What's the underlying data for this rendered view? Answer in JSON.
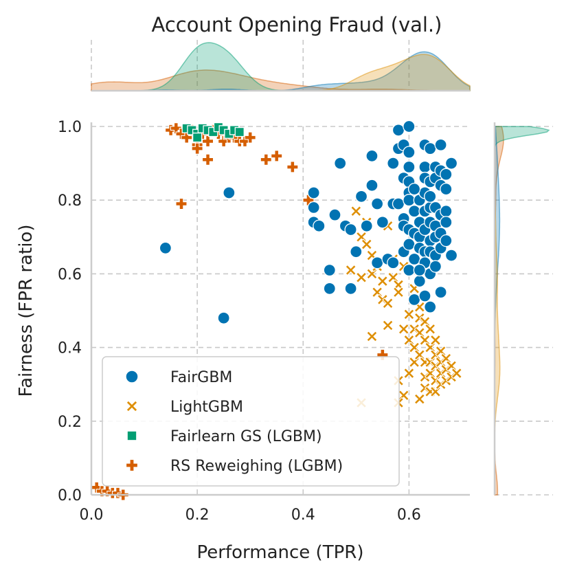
{
  "chart_data": {
    "type": "scatter",
    "title": "Account Opening Fraud (val.)",
    "xlabel": "Performance (TPR)",
    "ylabel": "Fairness (FPR ratio)",
    "xlim": [
      0.0,
      0.715
    ],
    "ylim": [
      0.0,
      1.0
    ],
    "xticks": [
      "0.0",
      "0.2",
      "0.4",
      "0.6"
    ],
    "yticks": [
      "0.0",
      "0.2",
      "0.4",
      "0.6",
      "0.8",
      "1.0"
    ],
    "grid": true,
    "legend_position": "lower-left",
    "marginal_distributions": true,
    "series": [
      {
        "name": "FairGBM",
        "marker": "circle",
        "color": "#0173b2",
        "points": [
          [
            0.14,
            0.67
          ],
          [
            0.25,
            0.48
          ],
          [
            0.26,
            0.82
          ],
          [
            0.42,
            0.82
          ],
          [
            0.42,
            0.78
          ],
          [
            0.42,
            0.74
          ],
          [
            0.43,
            0.73
          ],
          [
            0.46,
            0.76
          ],
          [
            0.45,
            0.61
          ],
          [
            0.45,
            0.56
          ],
          [
            0.47,
            0.9
          ],
          [
            0.48,
            0.73
          ],
          [
            0.49,
            0.72
          ],
          [
            0.49,
            0.56
          ],
          [
            0.5,
            0.66
          ],
          [
            0.51,
            0.81
          ],
          [
            0.52,
            0.73
          ],
          [
            0.53,
            0.84
          ],
          [
            0.53,
            0.92
          ],
          [
            0.54,
            0.79
          ],
          [
            0.54,
            0.63
          ],
          [
            0.55,
            0.74
          ],
          [
            0.56,
            0.64
          ],
          [
            0.57,
            0.9
          ],
          [
            0.57,
            0.79
          ],
          [
            0.57,
            0.63
          ],
          [
            0.58,
            0.94
          ],
          [
            0.58,
            0.99
          ],
          [
            0.58,
            0.79
          ],
          [
            0.59,
            0.95
          ],
          [
            0.59,
            0.86
          ],
          [
            0.59,
            0.75
          ],
          [
            0.59,
            0.73
          ],
          [
            0.59,
            0.66
          ],
          [
            0.6,
            1.0
          ],
          [
            0.6,
            0.93
          ],
          [
            0.6,
            0.89
          ],
          [
            0.6,
            0.85
          ],
          [
            0.6,
            0.82
          ],
          [
            0.6,
            0.8
          ],
          [
            0.6,
            0.72
          ],
          [
            0.6,
            0.68
          ],
          [
            0.6,
            0.61
          ],
          [
            0.61,
            0.53
          ],
          [
            0.61,
            0.77
          ],
          [
            0.61,
            0.71
          ],
          [
            0.61,
            0.64
          ],
          [
            0.62,
            0.8
          ],
          [
            0.62,
            0.74
          ],
          [
            0.62,
            0.7
          ],
          [
            0.62,
            0.67
          ],
          [
            0.62,
            0.58
          ],
          [
            0.63,
            0.95
          ],
          [
            0.63,
            0.89
          ],
          [
            0.63,
            0.86
          ],
          [
            0.63,
            0.82
          ],
          [
            0.63,
            0.77
          ],
          [
            0.63,
            0.72
          ],
          [
            0.63,
            0.66
          ],
          [
            0.63,
            0.63
          ],
          [
            0.63,
            0.54
          ],
          [
            0.64,
            0.94
          ],
          [
            0.64,
            0.85
          ],
          [
            0.64,
            0.78
          ],
          [
            0.64,
            0.74
          ],
          [
            0.64,
            0.69
          ],
          [
            0.64,
            0.66
          ],
          [
            0.64,
            0.6
          ],
          [
            0.64,
            0.51
          ],
          [
            0.65,
            0.89
          ],
          [
            0.65,
            0.86
          ],
          [
            0.65,
            0.78
          ],
          [
            0.65,
            0.73
          ],
          [
            0.65,
            0.7
          ],
          [
            0.65,
            0.65
          ],
          [
            0.65,
            0.62
          ],
          [
            0.66,
            0.95
          ],
          [
            0.66,
            0.88
          ],
          [
            0.66,
            0.84
          ],
          [
            0.66,
            0.76
          ],
          [
            0.66,
            0.71
          ],
          [
            0.66,
            0.67
          ],
          [
            0.66,
            0.55
          ],
          [
            0.67,
            0.87
          ],
          [
            0.67,
            0.83
          ],
          [
            0.67,
            0.77
          ],
          [
            0.67,
            0.74
          ],
          [
            0.67,
            0.69
          ],
          [
            0.68,
            0.9
          ],
          [
            0.68,
            0.65
          ],
          [
            0.62,
            0.61
          ],
          [
            0.61,
            0.83
          ],
          [
            0.64,
            0.81
          ]
        ]
      },
      {
        "name": "LightGBM",
        "marker": "x",
        "color": "#de8f05",
        "points": [
          [
            0.5,
            0.77
          ],
          [
            0.49,
            0.61
          ],
          [
            0.51,
            0.59
          ],
          [
            0.51,
            0.7
          ],
          [
            0.52,
            0.68
          ],
          [
            0.52,
            0.74
          ],
          [
            0.53,
            0.65
          ],
          [
            0.53,
            0.6
          ],
          [
            0.53,
            0.43
          ],
          [
            0.54,
            0.62
          ],
          [
            0.54,
            0.55
          ],
          [
            0.55,
            0.58
          ],
          [
            0.55,
            0.53
          ],
          [
            0.56,
            0.73
          ],
          [
            0.56,
            0.52
          ],
          [
            0.56,
            0.46
          ],
          [
            0.57,
            0.59
          ],
          [
            0.57,
            0.64
          ],
          [
            0.58,
            0.57
          ],
          [
            0.58,
            0.55
          ],
          [
            0.59,
            0.62
          ],
          [
            0.59,
            0.45
          ],
          [
            0.59,
            0.27
          ],
          [
            0.6,
            0.49
          ],
          [
            0.6,
            0.42
          ],
          [
            0.6,
            0.33
          ],
          [
            0.61,
            0.56
          ],
          [
            0.61,
            0.45
          ],
          [
            0.61,
            0.4
          ],
          [
            0.61,
            0.36
          ],
          [
            0.62,
            0.48
          ],
          [
            0.62,
            0.44
          ],
          [
            0.62,
            0.38
          ],
          [
            0.62,
            0.26
          ],
          [
            0.63,
            0.47
          ],
          [
            0.63,
            0.42
          ],
          [
            0.63,
            0.36
          ],
          [
            0.63,
            0.32
          ],
          [
            0.63,
            0.29
          ],
          [
            0.64,
            0.45
          ],
          [
            0.64,
            0.4
          ],
          [
            0.64,
            0.36
          ],
          [
            0.64,
            0.33
          ],
          [
            0.64,
            0.28
          ],
          [
            0.65,
            0.42
          ],
          [
            0.65,
            0.38
          ],
          [
            0.65,
            0.35
          ],
          [
            0.65,
            0.31
          ],
          [
            0.65,
            0.28
          ],
          [
            0.66,
            0.39
          ],
          [
            0.66,
            0.36
          ],
          [
            0.66,
            0.33
          ],
          [
            0.66,
            0.3
          ],
          [
            0.67,
            0.37
          ],
          [
            0.67,
            0.34
          ],
          [
            0.67,
            0.31
          ],
          [
            0.68,
            0.35
          ],
          [
            0.68,
            0.32
          ],
          [
            0.69,
            0.33
          ],
          [
            0.51,
            0.25
          ],
          [
            0.58,
            0.31
          ],
          [
            0.58,
            0.25
          ],
          [
            0.62,
            0.51
          ]
        ]
      },
      {
        "name": "Fairlearn GS (LGBM)",
        "marker": "square",
        "color": "#029e73",
        "points": [
          [
            0.18,
            0.995
          ],
          [
            0.19,
            0.99
          ],
          [
            0.2,
            0.98
          ],
          [
            0.2,
            0.97
          ],
          [
            0.21,
            0.995
          ],
          [
            0.22,
            0.99
          ],
          [
            0.23,
            0.985
          ],
          [
            0.24,
            0.998
          ],
          [
            0.25,
            0.99
          ],
          [
            0.26,
            0.98
          ],
          [
            0.27,
            0.99
          ],
          [
            0.28,
            0.985
          ]
        ]
      },
      {
        "name": "RS Reweighing (LGBM)",
        "marker": "plus",
        "color": "#d55e00",
        "points": [
          [
            0.15,
            0.99
          ],
          [
            0.16,
            0.995
          ],
          [
            0.17,
            0.98
          ],
          [
            0.18,
            0.97
          ],
          [
            0.19,
            0.99
          ],
          [
            0.2,
            0.95
          ],
          [
            0.2,
            0.94
          ],
          [
            0.21,
            0.98
          ],
          [
            0.22,
            0.91
          ],
          [
            0.22,
            0.96
          ],
          [
            0.23,
            0.99
          ],
          [
            0.24,
            0.98
          ],
          [
            0.25,
            0.96
          ],
          [
            0.26,
            0.97
          ],
          [
            0.27,
            0.97
          ],
          [
            0.28,
            0.96
          ],
          [
            0.29,
            0.96
          ],
          [
            0.3,
            0.97
          ],
          [
            0.33,
            0.91
          ],
          [
            0.35,
            0.92
          ],
          [
            0.38,
            0.89
          ],
          [
            0.41,
            0.8
          ],
          [
            0.17,
            0.79
          ],
          [
            0.55,
            0.38
          ],
          [
            0.01,
            0.02
          ],
          [
            0.02,
            0.01
          ],
          [
            0.03,
            0.01
          ],
          [
            0.04,
            0.005
          ],
          [
            0.05,
            0.005
          ],
          [
            0.06,
            0.0
          ]
        ]
      }
    ]
  }
}
